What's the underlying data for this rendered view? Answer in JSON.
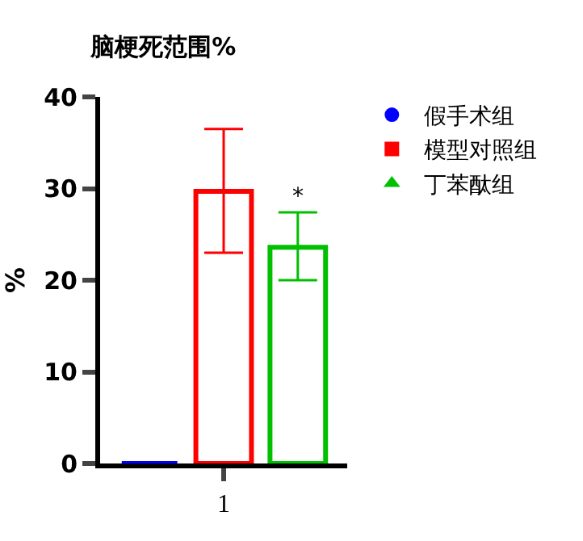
{
  "chart_data": {
    "type": "bar",
    "title": "脑梗死范围%",
    "ylabel": "%",
    "categories": [
      "1"
    ],
    "series": [
      {
        "name": "假手术组",
        "color": "#0000ff",
        "marker": "circle",
        "values": [
          0
        ],
        "errors": [
          null
        ]
      },
      {
        "name": "模型对照组",
        "color": "#ff0000",
        "marker": "square",
        "values": [
          29.7
        ],
        "errors": [
          [
            23.0,
            36.5
          ]
        ]
      },
      {
        "name": "丁苯酞组",
        "color": "#00c000",
        "marker": "triangle",
        "values": [
          23.6
        ],
        "errors": [
          [
            20.0,
            27.4
          ]
        ],
        "value_labels": [
          "*"
        ]
      }
    ],
    "ylim": [
      0,
      40
    ],
    "yticks": [
      0,
      10,
      20,
      30,
      40
    ],
    "grid": false,
    "legend": "top right"
  }
}
